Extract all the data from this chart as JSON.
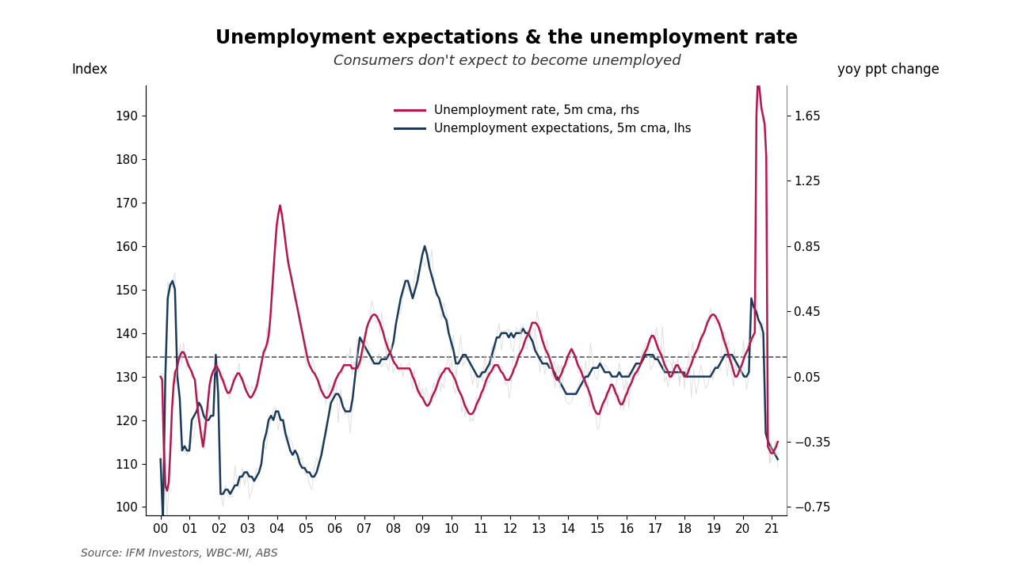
{
  "title": "Unemployment expectations & the unemployment rate",
  "subtitle": "Consumers don't expect to become unemployed",
  "source": "Source: IFM Investors, WBC-MI, ABS",
  "ylabel_left": "Index",
  "ylabel_right": "yoy ppt change",
  "lhs_ylim": [
    98,
    197
  ],
  "lhs_yticks": [
    100,
    110,
    120,
    130,
    140,
    150,
    160,
    170,
    180,
    190
  ],
  "rhs_yticks": [
    -0.75,
    -0.35,
    0.05,
    0.45,
    0.85,
    1.25,
    1.65
  ],
  "hline_value": 134.5,
  "background_color": "#ffffff",
  "line1_color": "#b5174b",
  "line2_color": "#1a3a5c",
  "legend_entries": [
    "Unemployment rate, 5m cma, rhs",
    "Unemployment expectations, 5m cma, lhs"
  ],
  "x_tick_labels": [
    "00",
    "01",
    "02",
    "03",
    "04",
    "05",
    "06",
    "07",
    "08",
    "09",
    "10",
    "11",
    "12",
    "13",
    "14",
    "15",
    "16",
    "17",
    "18",
    "19",
    "20",
    "21"
  ],
  "lhs_data": [
    111,
    97,
    130,
    148,
    151,
    152,
    150,
    130,
    125,
    113,
    114,
    113,
    113,
    120,
    121,
    122,
    124,
    123,
    121,
    120,
    120,
    121,
    121,
    135,
    126,
    103,
    103,
    104,
    104,
    103,
    104,
    105,
    105,
    107,
    107,
    108,
    108,
    107,
    107,
    106,
    107,
    108,
    110,
    115,
    117,
    120,
    121,
    120,
    122,
    122,
    120,
    120,
    117,
    115,
    113,
    112,
    113,
    112,
    110,
    109,
    109,
    108,
    108,
    107,
    107,
    108,
    110,
    112,
    115,
    118,
    121,
    124,
    125,
    126,
    126,
    125,
    123,
    122,
    122,
    122,
    125,
    130,
    135,
    139,
    138,
    137,
    136,
    135,
    134,
    133,
    133,
    133,
    134,
    134,
    134,
    135,
    136,
    138,
    142,
    145,
    148,
    150,
    152,
    152,
    150,
    148,
    150,
    152,
    155,
    158,
    160,
    158,
    155,
    153,
    151,
    149,
    148,
    146,
    144,
    143,
    140,
    138,
    136,
    133,
    133,
    134,
    135,
    135,
    134,
    133,
    132,
    131,
    130,
    130,
    131,
    131,
    132,
    133,
    135,
    137,
    139,
    139,
    140,
    140,
    140,
    139,
    140,
    139,
    140,
    140,
    140,
    141,
    140,
    140,
    139,
    138,
    136,
    135,
    134,
    133,
    133,
    133,
    132,
    132,
    131,
    130,
    129,
    128,
    127,
    126,
    126,
    126,
    126,
    126,
    127,
    128,
    129,
    130,
    130,
    131,
    132,
    132,
    132,
    133,
    132,
    131,
    131,
    131,
    130,
    130,
    130,
    131,
    130,
    130,
    130,
    130,
    131,
    132,
    133,
    133,
    133,
    134,
    135,
    135,
    135,
    135,
    134,
    134,
    133,
    132,
    131,
    131,
    131,
    131,
    131,
    131,
    131,
    131,
    131,
    130,
    130,
    130,
    130,
    130,
    130,
    130,
    130,
    130,
    130,
    130,
    131,
    132,
    132,
    133,
    134,
    135,
    135,
    135,
    135,
    134,
    133,
    132,
    131,
    130,
    130,
    131,
    148,
    146,
    145,
    143,
    142,
    140,
    117,
    115,
    114,
    113,
    112,
    111
  ],
  "rhs_data": [
    0.05,
    0.03,
    -0.38,
    -0.62,
    -0.65,
    -0.6,
    -0.4,
    -0.15,
    0.0,
    0.08,
    0.1,
    0.15,
    0.18,
    0.2,
    0.2,
    0.18,
    0.15,
    0.12,
    0.1,
    0.08,
    0.05,
    0.03,
    -0.08,
    -0.18,
    -0.25,
    -0.32,
    -0.38,
    -0.3,
    -0.2,
    -0.1,
    0.0,
    0.05,
    0.08,
    0.1,
    0.12,
    0.1,
    0.08,
    0.05,
    0.03,
    0.0,
    -0.03,
    -0.05,
    -0.05,
    -0.03,
    0.0,
    0.03,
    0.05,
    0.07,
    0.07,
    0.05,
    0.03,
    0.0,
    -0.03,
    -0.05,
    -0.07,
    -0.08,
    -0.07,
    -0.05,
    -0.03,
    0.0,
    0.05,
    0.1,
    0.15,
    0.2,
    0.22,
    0.25,
    0.3,
    0.4,
    0.55,
    0.7,
    0.85,
    0.98,
    1.05,
    1.1,
    1.05,
    0.98,
    0.9,
    0.82,
    0.75,
    0.7,
    0.65,
    0.6,
    0.55,
    0.5,
    0.45,
    0.4,
    0.35,
    0.3,
    0.25,
    0.2,
    0.15,
    0.12,
    0.1,
    0.08,
    0.07,
    0.05,
    0.03,
    0.0,
    -0.03,
    -0.05,
    -0.07,
    -0.08,
    -0.08,
    -0.07,
    -0.05,
    -0.03,
    0.0,
    0.03,
    0.05,
    0.07,
    0.08,
    0.1,
    0.12,
    0.12,
    0.12,
    0.12,
    0.12,
    0.1,
    0.1,
    0.1,
    0.1,
    0.12,
    0.15,
    0.2,
    0.25,
    0.3,
    0.35,
    0.38,
    0.4,
    0.42,
    0.43,
    0.43,
    0.42,
    0.4,
    0.38,
    0.35,
    0.32,
    0.28,
    0.25,
    0.22,
    0.2,
    0.18,
    0.15,
    0.13,
    0.12,
    0.1,
    0.1,
    0.1,
    0.1,
    0.1,
    0.1,
    0.1,
    0.1,
    0.08,
    0.05,
    0.03,
    0.0,
    -0.03,
    -0.05,
    -0.07,
    -0.08,
    -0.1,
    -0.12,
    -0.13,
    -0.12,
    -0.1,
    -0.07,
    -0.05,
    -0.03,
    0.0,
    0.03,
    0.05,
    0.07,
    0.08,
    0.1,
    0.1,
    0.1,
    0.08,
    0.07,
    0.05,
    0.03,
    0.0,
    -0.03,
    -0.05,
    -0.07,
    -0.1,
    -0.13,
    -0.15,
    -0.17,
    -0.18,
    -0.18,
    -0.17,
    -0.15,
    -0.12,
    -0.1,
    -0.08,
    -0.05,
    -0.03,
    0.0,
    0.03,
    0.05,
    0.07,
    0.08,
    0.1,
    0.12,
    0.12,
    0.12,
    0.1,
    0.08,
    0.07,
    0.05,
    0.03,
    0.03,
    0.03,
    0.05,
    0.07,
    0.1,
    0.12,
    0.15,
    0.18,
    0.2,
    0.22,
    0.25,
    0.28,
    0.3,
    0.32,
    0.35,
    0.38,
    0.38,
    0.38,
    0.37,
    0.35,
    0.32,
    0.28,
    0.25,
    0.22,
    0.2,
    0.18,
    0.15,
    0.12,
    0.08,
    0.05,
    0.03,
    0.03,
    0.05,
    0.07,
    0.1,
    0.12,
    0.15,
    0.18,
    0.2,
    0.22,
    0.2,
    0.18,
    0.15,
    0.12,
    0.1,
    0.08,
    0.05,
    0.03,
    0.0,
    -0.02,
    -0.05,
    -0.08,
    -0.12,
    -0.15,
    -0.17,
    -0.18,
    -0.18,
    -0.15,
    -0.12,
    -0.1,
    -0.08,
    -0.05,
    -0.03,
    0.0,
    0.0,
    -0.02,
    -0.05,
    -0.07,
    -0.1,
    -0.12,
    -0.12,
    -0.1,
    -0.07,
    -0.05,
    -0.02,
    0.0,
    0.02,
    0.05,
    0.07,
    0.08,
    0.1,
    0.12,
    0.15,
    0.18,
    0.2,
    0.22,
    0.25,
    0.28,
    0.3,
    0.3,
    0.28,
    0.25,
    0.22,
    0.2,
    0.18,
    0.15,
    0.12,
    0.1,
    0.08,
    0.05,
    0.05,
    0.07,
    0.1,
    0.12,
    0.12,
    0.1,
    0.08,
    0.07,
    0.05,
    0.05,
    0.07,
    0.1,
    0.12,
    0.15,
    0.18,
    0.2,
    0.22,
    0.25,
    0.28,
    0.3,
    0.32,
    0.35,
    0.38,
    0.4,
    0.42,
    0.43,
    0.43,
    0.42,
    0.4,
    0.38,
    0.35,
    0.32,
    0.28,
    0.25,
    0.22,
    0.18,
    0.15,
    0.12,
    0.08,
    0.05,
    0.05,
    0.07,
    0.1,
    0.12,
    0.15,
    0.18,
    0.2,
    0.22,
    0.25,
    0.28,
    0.3,
    0.32,
    1.65,
    1.9,
    1.8,
    1.7,
    1.65,
    1.6,
    1.4,
    -0.38,
    -0.4,
    -0.42,
    -0.42,
    -0.4,
    -0.38,
    -0.35
  ]
}
